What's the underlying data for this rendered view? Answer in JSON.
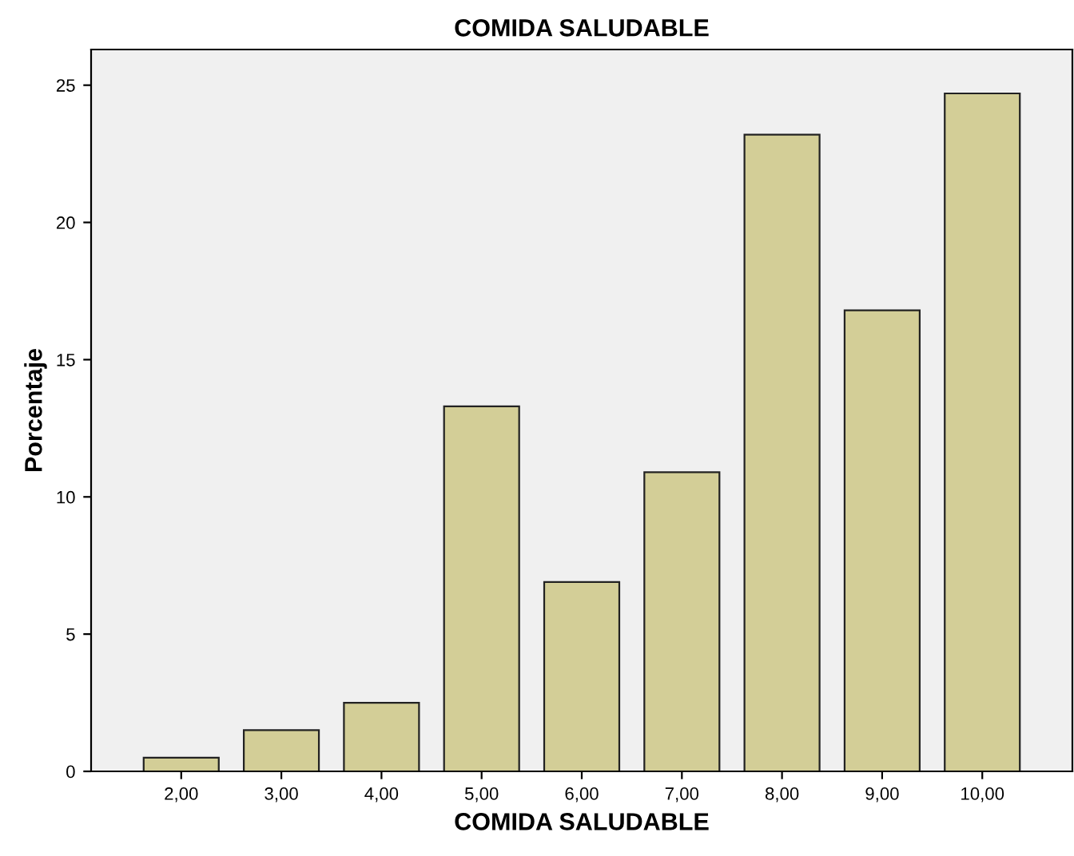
{
  "chart_data": {
    "type": "bar",
    "title": "COMIDA SALUDABLE",
    "xlabel": "COMIDA SALUDABLE",
    "ylabel": "Porcentaje",
    "categories": [
      "2,00",
      "3,00",
      "4,00",
      "5,00",
      "6,00",
      "7,00",
      "8,00",
      "9,00",
      "10,00"
    ],
    "values": [
      0.5,
      1.5,
      2.5,
      13.3,
      6.9,
      10.9,
      23.2,
      16.8,
      24.7
    ],
    "color": "#d3ce97",
    "ylim": [
      0,
      26.3
    ],
    "yticks": [
      0,
      5,
      10,
      15,
      20,
      25
    ],
    "grid": false
  }
}
